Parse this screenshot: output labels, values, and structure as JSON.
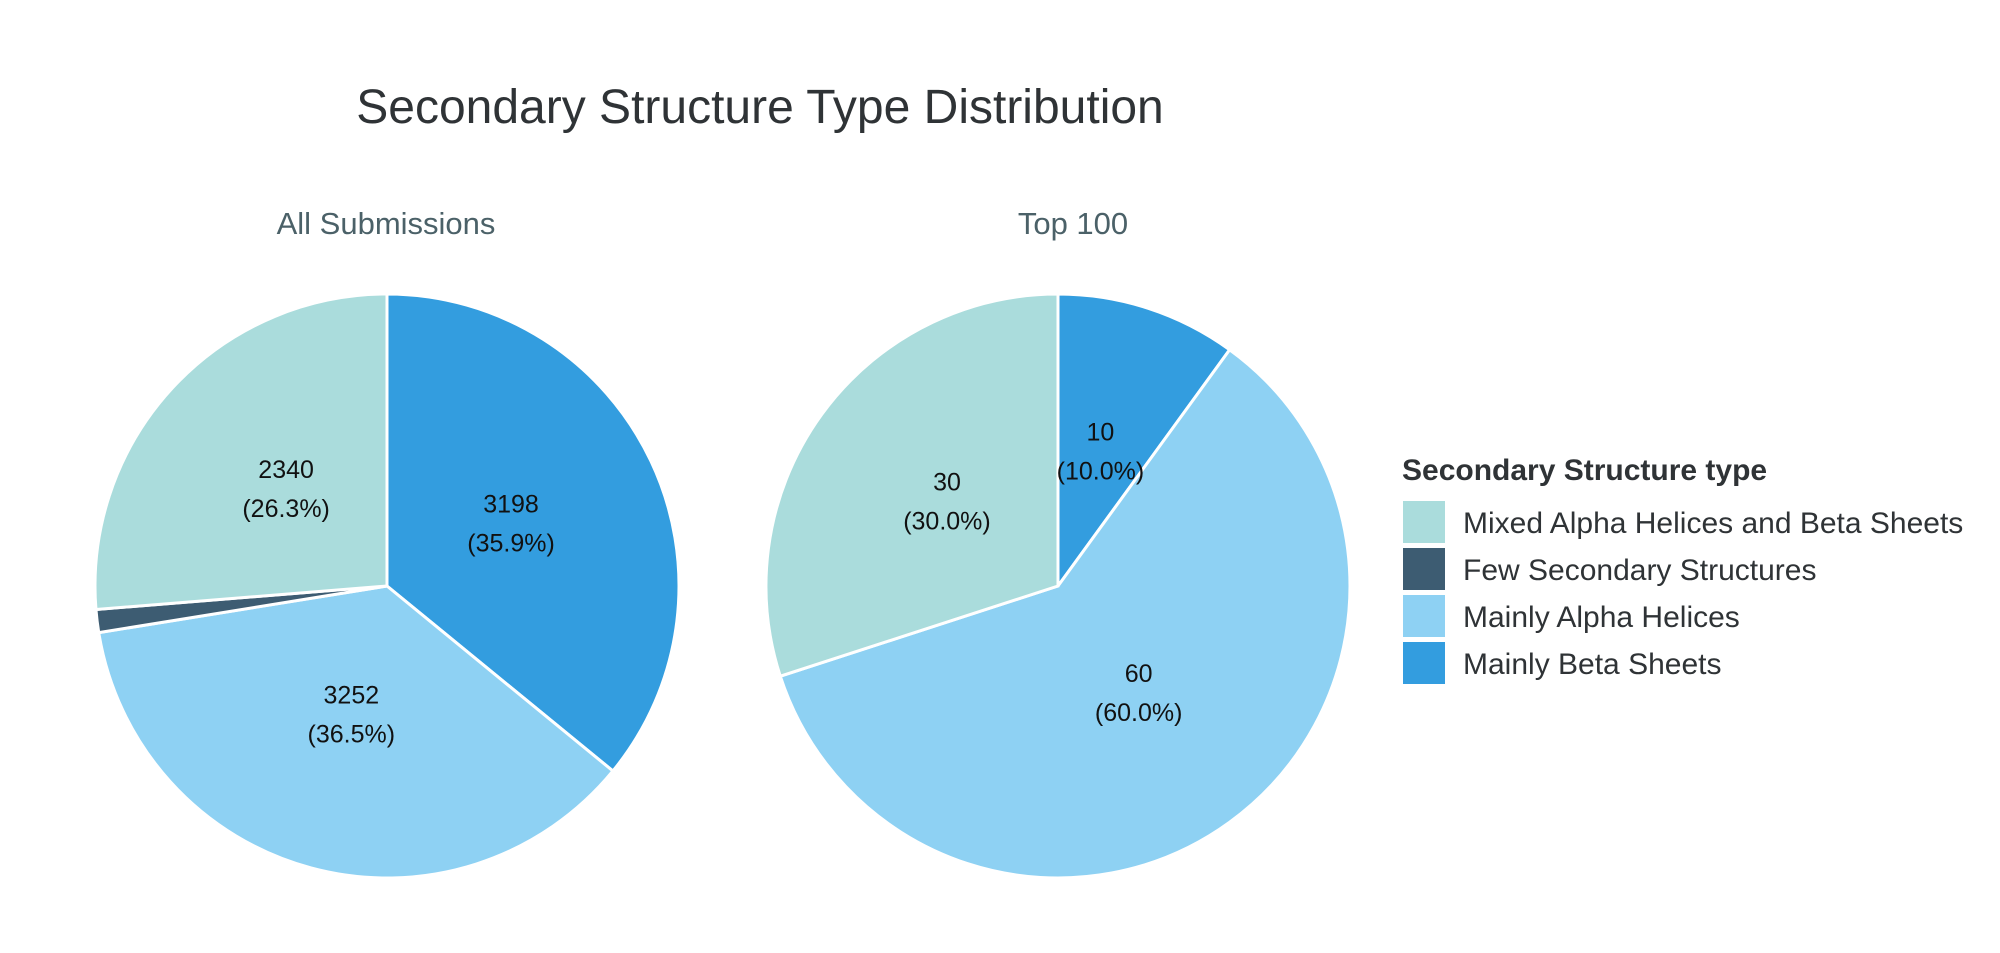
{
  "chart_data": {
    "type": "pie",
    "title": "Secondary Structure Type Distribution",
    "legend": {
      "title": "Secondary Structure type",
      "placement": "right",
      "items": [
        {
          "label": "Mixed Alpha Helices and Beta Sheets",
          "color": "#aadcdc"
        },
        {
          "label": "Few Secondary Structures",
          "color": "#3d5c72"
        },
        {
          "label": "Mainly Alpha Helices",
          "color": "#8ed1f3"
        },
        {
          "label": "Mainly Beta Sheets",
          "color": "#339ddf"
        }
      ]
    },
    "pies": [
      {
        "title": "All Submissions",
        "slices": [
          {
            "category": "Mainly Beta Sheets",
            "value": 3198,
            "label": "3198",
            "percent_label": "(35.9%)"
          },
          {
            "category": "Mainly Alpha Helices",
            "value": 3252,
            "label": "3252",
            "percent_label": "(36.5%)"
          },
          {
            "category": "Few Secondary Structures",
            "value": 113,
            "label": "",
            "percent_label": ""
          },
          {
            "category": "Mixed Alpha Helices and Beta Sheets",
            "value": 2340,
            "label": "2340",
            "percent_label": "(26.3%)"
          }
        ]
      },
      {
        "title": "Top 100",
        "slices": [
          {
            "category": "Mainly Beta Sheets",
            "value": 10,
            "label": "10",
            "percent_label": "(10.0%)"
          },
          {
            "category": "Mainly Alpha Helices",
            "value": 60,
            "label": "60",
            "percent_label": "(60.0%)"
          },
          {
            "category": "Mixed Alpha Helices and Beta Sheets",
            "value": 30,
            "label": "30",
            "percent_label": "(30.0%)"
          }
        ]
      }
    ]
  }
}
